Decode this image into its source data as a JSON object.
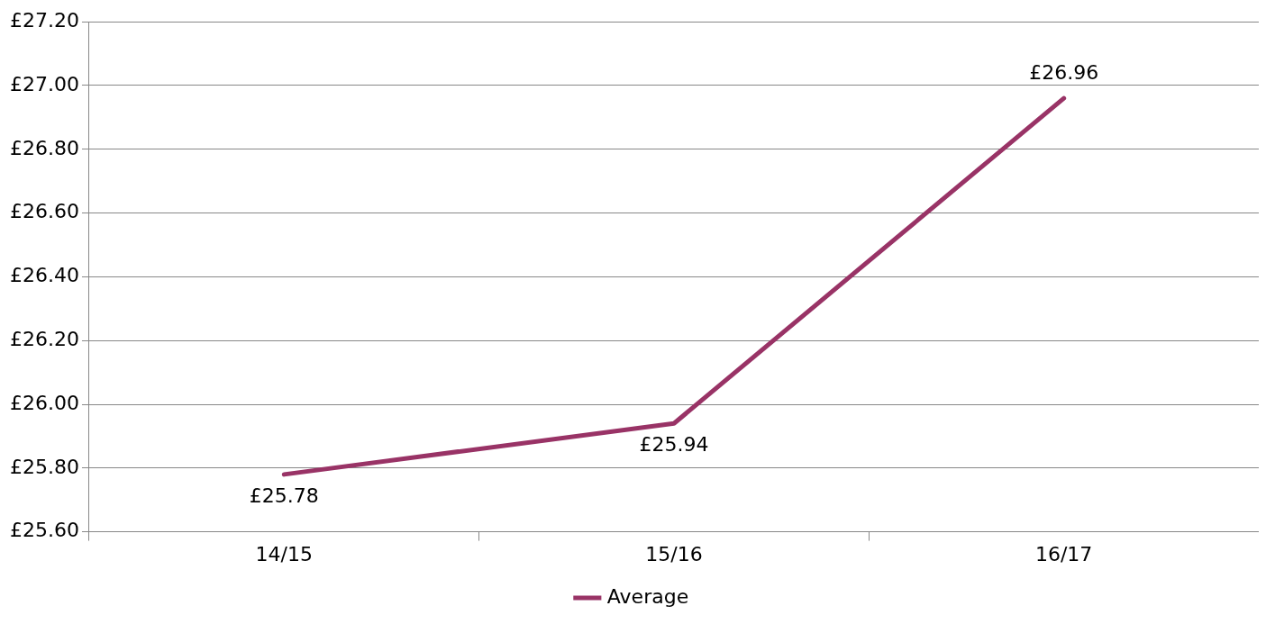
{
  "chart_data": {
    "type": "line",
    "categories": [
      "14/15",
      "15/16",
      "16/17"
    ],
    "series": [
      {
        "name": "Average",
        "color": "#993366",
        "values": [
          25.78,
          25.94,
          26.96
        ],
        "value_labels": [
          "£25.78",
          "£25.94",
          "£26.96"
        ]
      }
    ],
    "ylim": [
      25.6,
      27.2
    ],
    "yticks": [
      {
        "value": 25.6,
        "label": "£25.60"
      },
      {
        "value": 25.8,
        "label": "£25.80"
      },
      {
        "value": 26,
        "label": "£26.00"
      },
      {
        "value": 26.2,
        "label": "£26.20"
      },
      {
        "value": 26.4,
        "label": "£26.40"
      },
      {
        "value": 26.6,
        "label": "£26.60"
      },
      {
        "value": 26.8,
        "label": "£26.80"
      },
      {
        "value": 27,
        "label": "£27.00"
      },
      {
        "value": 27.2,
        "label": "£27.20"
      }
    ],
    "grid": "y",
    "legend": "bottom",
    "marker": "none",
    "line_style": "solid"
  }
}
